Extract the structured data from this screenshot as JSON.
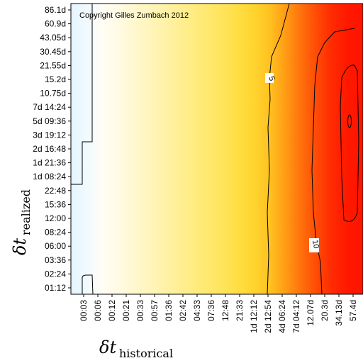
{
  "chart_data": {
    "type": "heatmap",
    "copyright": "Copyright Gilles Zumbach 2012",
    "xlabel": {
      "main": "δt",
      "sub": "historical"
    },
    "ylabel": {
      "main": "δt",
      "sub": "realized"
    },
    "x_ticks": [
      "00:03",
      "00:06",
      "00:12",
      "00:21",
      "00:33",
      "00:57",
      "01:36",
      "02:42",
      "04:33",
      "07:36",
      "12:48",
      "21:33",
      "1d 12:12",
      "2d 12:54",
      "4d 06:24",
      "7d 04:12",
      "12.07d",
      "20.3d",
      "34.13d",
      "57.4d"
    ],
    "y_ticks": [
      "86.1d",
      "60.9d",
      "43.05d",
      "30.45d",
      "21.55d",
      "15.2d",
      "10.75d",
      "7d 14:24",
      "5d 09:36",
      "3d 19:12",
      "2d 16:48",
      "1d 21:36",
      "1d 08:24",
      "22:48",
      "15:36",
      "12:00",
      "08:24",
      "06:00",
      "03:36",
      "02:24",
      "01:12"
    ],
    "color_by_x": [
      "#e4f4ff",
      "#f0faff",
      "#fffdf5",
      "#fffbe6",
      "#fff8d2",
      "#fff5be",
      "#fff2aa",
      "#ffef95",
      "#ffec80",
      "#ffe86c",
      "#ffe358",
      "#ffdd40",
      "#ffd32e",
      "#ffc020",
      "#ff9a14",
      "#ff700c",
      "#ff4a06",
      "#ff2a02",
      "#ff1800",
      "#ff1500"
    ],
    "contours": [
      {
        "label": "5",
        "x_position_tick": 13.0
      },
      {
        "label": "10",
        "x_position_tick": 16.6
      }
    ]
  }
}
